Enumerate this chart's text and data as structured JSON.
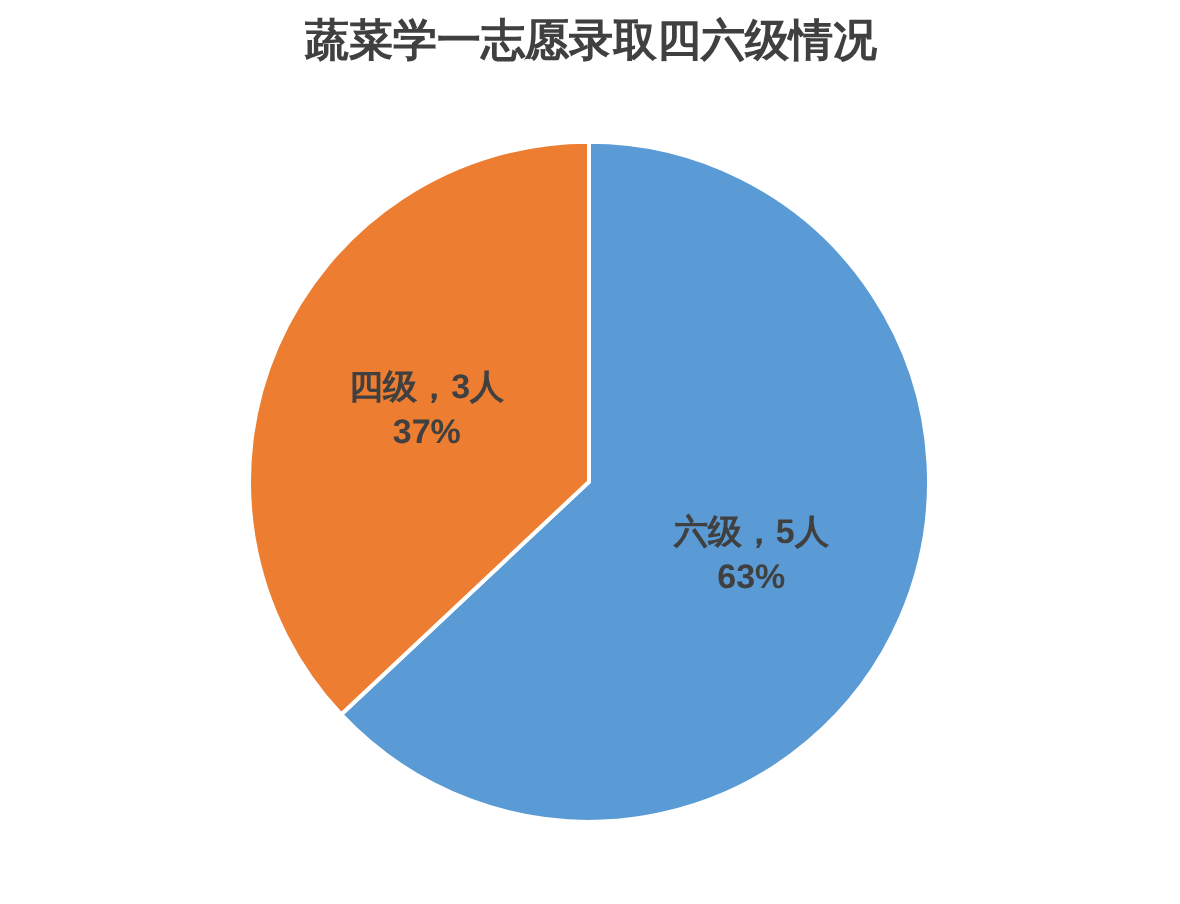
{
  "chart_data": {
    "type": "pie",
    "title": "蔬菜学一志愿录取四六级情况",
    "categories": [
      "六级，5人",
      "四级，3人"
    ],
    "values": [
      63,
      37
    ],
    "colors": [
      "#5b9bd5",
      "#ed7d31"
    ],
    "value_labels": [
      "63%",
      "37%"
    ],
    "legend": false
  }
}
